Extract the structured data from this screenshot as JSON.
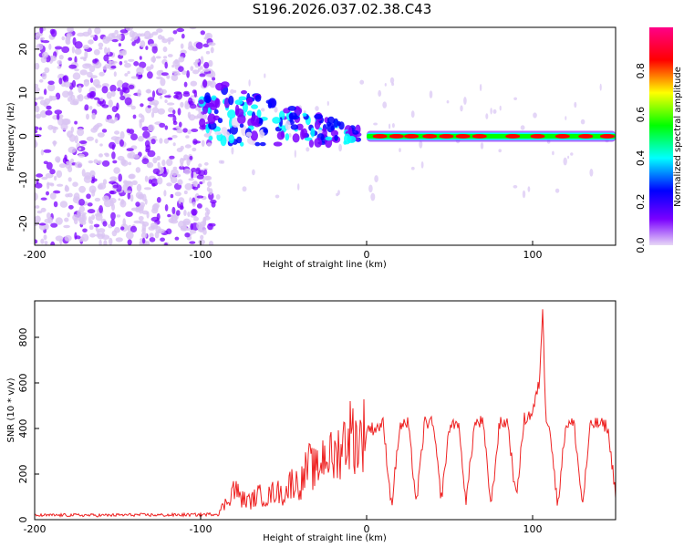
{
  "title": "S196.2026.037.02.38.C43",
  "chart_data": [
    {
      "type": "heatmap",
      "name": "spectrogram",
      "title": "",
      "xlabel": "Height of straight line (km)",
      "ylabel": "Frequency (Hz)",
      "xlim": [
        -200,
        150
      ],
      "ylim": [
        -25,
        25
      ],
      "x_ticks": [
        -200,
        -100,
        0,
        100
      ],
      "y_ticks": [
        -20,
        -10,
        0,
        10,
        20
      ],
      "regions": [
        {
          "label": "broadband noise",
          "x_range": [
            -200,
            -92
          ],
          "y_range": [
            -25,
            25
          ],
          "amplitude": 0.15
        },
        {
          "label": "wandering onset",
          "x_range": [
            -100,
            -5
          ],
          "freq_start": 6,
          "freq_end": 0,
          "amplitude": 0.3
        },
        {
          "label": "steady tone",
          "x_range": [
            0,
            150
          ],
          "freq": 0,
          "amplitude": 0.95
        }
      ],
      "colorbar": {
        "label": "Normalized spectral amplitude",
        "ticks": [
          "0.0",
          "0.2",
          "0.4",
          "0.6",
          "0.8"
        ],
        "colors": [
          "#e8d8f6",
          "#7a00ff",
          "#0000ff",
          "#00ffff",
          "#00ff00",
          "#ffff00",
          "#ff0000",
          "#ff0088"
        ]
      }
    },
    {
      "type": "line",
      "name": "snr",
      "title": "",
      "xlabel": "Height of straight line (km)",
      "ylabel": "SNR (10 * v/v)",
      "xlim": [
        -200,
        150
      ],
      "ylim": [
        0,
        960
      ],
      "x_ticks": [
        -200,
        -100,
        0,
        100
      ],
      "y_ticks": [
        0,
        200,
        400,
        600,
        800
      ],
      "color": "#ee2222",
      "series": [
        {
          "name": "SNR",
          "x": [
            -200,
            -180,
            -160,
            -140,
            -120,
            -100,
            -90,
            -85,
            -80,
            -75,
            -70,
            -65,
            -60,
            -55,
            -50,
            -45,
            -40,
            -35,
            -30,
            -25,
            -20,
            -15,
            -10,
            -5,
            0,
            5,
            10,
            15,
            20,
            25,
            30,
            35,
            40,
            45,
            50,
            55,
            60,
            65,
            70,
            75,
            80,
            85,
            90,
            95,
            100,
            104,
            106,
            108,
            110,
            115,
            120,
            125,
            130,
            135,
            140,
            145,
            150
          ],
          "values": [
            18,
            20,
            19,
            21,
            20,
            22,
            25,
            70,
            140,
            90,
            80,
            110,
            95,
            130,
            105,
            170,
            150,
            240,
            210,
            300,
            260,
            330,
            380,
            340,
            400,
            400,
            420,
            60,
            410,
            420,
            70,
            430,
            420,
            90,
            410,
            430,
            80,
            420,
            430,
            60,
            420,
            430,
            90,
            440,
            470,
            600,
            920,
            450,
            430,
            60,
            420,
            420,
            60,
            420,
            420,
            410,
            120
          ]
        }
      ]
    }
  ]
}
